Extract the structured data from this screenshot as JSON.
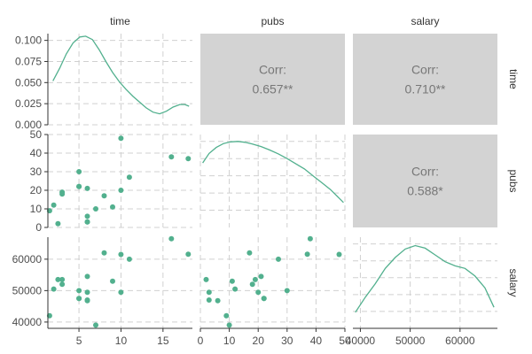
{
  "chart_data": {
    "type": "scatter-matrix",
    "variables": [
      "time",
      "pubs",
      "salary"
    ],
    "colors": {
      "point": "#52b08e",
      "line": "#52b08e",
      "corr_panel": "#d3d3d3",
      "corr_text": "#777777"
    },
    "grid": true,
    "axes": {
      "time": {
        "lim": [
          1.3,
          18.5
        ],
        "ticks": [
          5,
          10,
          15
        ]
      },
      "pubs": {
        "lim": [
          0,
          50
        ],
        "ticks": [
          0,
          10,
          20,
          30,
          40,
          50
        ],
        "x_ticks": [
          0,
          10,
          20,
          30,
          40,
          50
        ]
      },
      "salary": {
        "lim": [
          38000,
          67000
        ],
        "ticks": [
          40000,
          50000,
          60000
        ],
        "x_lim": [
          38500,
          67500
        ],
        "x_ticks": [
          40000,
          50000,
          60000
        ]
      },
      "density_time": {
        "lim": [
          0,
          0.108
        ],
        "ticks": [
          0.0,
          0.025,
          0.05,
          0.075,
          0.1
        ],
        "tick_labels": [
          "0.000",
          "0.025",
          "0.050",
          "0.075",
          "0.100"
        ]
      }
    },
    "density": {
      "time": [
        [
          1.9,
          0.052
        ],
        [
          2.7,
          0.067
        ],
        [
          3.5,
          0.084
        ],
        [
          4.3,
          0.097
        ],
        [
          5.1,
          0.104
        ],
        [
          5.8,
          0.105
        ],
        [
          6.6,
          0.101
        ],
        [
          7.4,
          0.089
        ],
        [
          8.2,
          0.075
        ],
        [
          9.0,
          0.062
        ],
        [
          9.8,
          0.051
        ],
        [
          10.6,
          0.042
        ],
        [
          11.4,
          0.034
        ],
        [
          12.2,
          0.027
        ],
        [
          13.0,
          0.02
        ],
        [
          13.8,
          0.015
        ],
        [
          14.6,
          0.013
        ],
        [
          15.4,
          0.016
        ],
        [
          16.2,
          0.021
        ],
        [
          17.0,
          0.024
        ],
        [
          17.6,
          0.024
        ],
        [
          18.1,
          0.022
        ]
      ],
      "pubs": [
        [
          0.8,
          0.75
        ],
        [
          3,
          0.86
        ],
        [
          5.5,
          0.93
        ],
        [
          8,
          0.975
        ],
        [
          10.5,
          0.995
        ],
        [
          13,
          1.0
        ],
        [
          15.5,
          0.99
        ],
        [
          18,
          0.97
        ],
        [
          21,
          0.94
        ],
        [
          24,
          0.9
        ],
        [
          27,
          0.855
        ],
        [
          30,
          0.8
        ],
        [
          33,
          0.74
        ],
        [
          36,
          0.68
        ],
        [
          39,
          0.6
        ],
        [
          42,
          0.52
        ],
        [
          45,
          0.44
        ],
        [
          48,
          0.34
        ],
        [
          49.5,
          0.29
        ]
      ],
      "salary": [
        [
          39000,
          0.19
        ],
        [
          41000,
          0.37
        ],
        [
          43000,
          0.53
        ],
        [
          45000,
          0.71
        ],
        [
          47000,
          0.84
        ],
        [
          49000,
          0.94
        ],
        [
          51000,
          0.98
        ],
        [
          53000,
          0.95
        ],
        [
          55000,
          0.87
        ],
        [
          57000,
          0.79
        ],
        [
          59000,
          0.74
        ],
        [
          61000,
          0.71
        ],
        [
          63000,
          0.62
        ],
        [
          65000,
          0.48
        ],
        [
          66800,
          0.25
        ]
      ]
    },
    "points": {
      "time": [
        1.5,
        2,
        2.5,
        3,
        3,
        5,
        5,
        5,
        6,
        6,
        6,
        6,
        7,
        8,
        9,
        10,
        10,
        11,
        16,
        18
      ],
      "pubs": [
        9,
        12,
        2,
        18,
        19,
        30,
        22,
        22,
        21,
        6,
        3,
        3,
        10,
        17,
        11,
        48,
        20,
        27,
        38,
        37
      ],
      "salary": [
        42000,
        50500,
        53500,
        52000,
        53500,
        50000,
        47500,
        47500,
        54500,
        46800,
        47000,
        49500,
        39000,
        62000,
        53000,
        61500,
        49500,
        60000,
        66500,
        61600
      ]
    },
    "correlations": [
      {
        "row": "time",
        "col": "pubs",
        "label": "Corr:",
        "value": "0.657**"
      },
      {
        "row": "time",
        "col": "salary",
        "label": "Corr:",
        "value": "0.710**"
      },
      {
        "row": "pubs",
        "col": "salary",
        "label": "Corr:",
        "value": "0.588*"
      }
    ]
  }
}
